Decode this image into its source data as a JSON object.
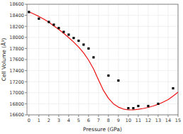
{
  "chart_data": {
    "type": "scatter",
    "xlabel": "Pressure (GPa)",
    "ylabel": "Cell Volume (Å³)",
    "xlim": [
      -0.2,
      15
    ],
    "ylim": [
      16600,
      18600
    ],
    "xticks": [
      0,
      1,
      2,
      3,
      4,
      5,
      6,
      7,
      8,
      9,
      10,
      11,
      12,
      13,
      14,
      15
    ],
    "yticks": [
      16600,
      16800,
      17000,
      17200,
      17400,
      17600,
      17800,
      18000,
      18200,
      18400,
      18600
    ],
    "series": [
      {
        "type": "scatter",
        "color": "black",
        "marker": "square",
        "x": [
          0.0,
          1.0,
          2.0,
          2.5,
          3.0,
          3.5,
          4.0,
          4.5,
          5.0,
          5.5,
          6.0,
          6.5,
          8.0,
          9.0,
          10.0,
          10.5,
          11.0,
          12.0,
          13.0,
          14.5
        ],
        "values": [
          18460,
          18340,
          18280,
          18230,
          18170,
          18100,
          18050,
          17990,
          17940,
          17870,
          17800,
          17640,
          17310,
          17220,
          16720,
          16720,
          16760,
          16760,
          16800,
          17080
        ]
      },
      {
        "type": "line",
        "color": "#ee1111",
        "line_style": "solid",
        "x": [
          0.0,
          0.3,
          0.6,
          1.0,
          1.5,
          2.0,
          2.5,
          3.0,
          3.5,
          4.0,
          4.5,
          5.0,
          5.5,
          6.0,
          6.5,
          7.0,
          7.5,
          8.0,
          8.5,
          9.0,
          9.5,
          10.0,
          10.5,
          11.0,
          11.5,
          12.0,
          12.5,
          13.0,
          13.5,
          14.0,
          14.5,
          15.0
        ],
        "values": [
          18460,
          18440,
          18415,
          18380,
          18330,
          18275,
          18210,
          18145,
          18075,
          17998,
          17915,
          17825,
          17720,
          17590,
          17430,
          17230,
          17040,
          16900,
          16800,
          16740,
          16705,
          16690,
          16690,
          16700,
          16715,
          16735,
          16760,
          16790,
          16830,
          16875,
          16940,
          17010
        ]
      }
    ]
  }
}
